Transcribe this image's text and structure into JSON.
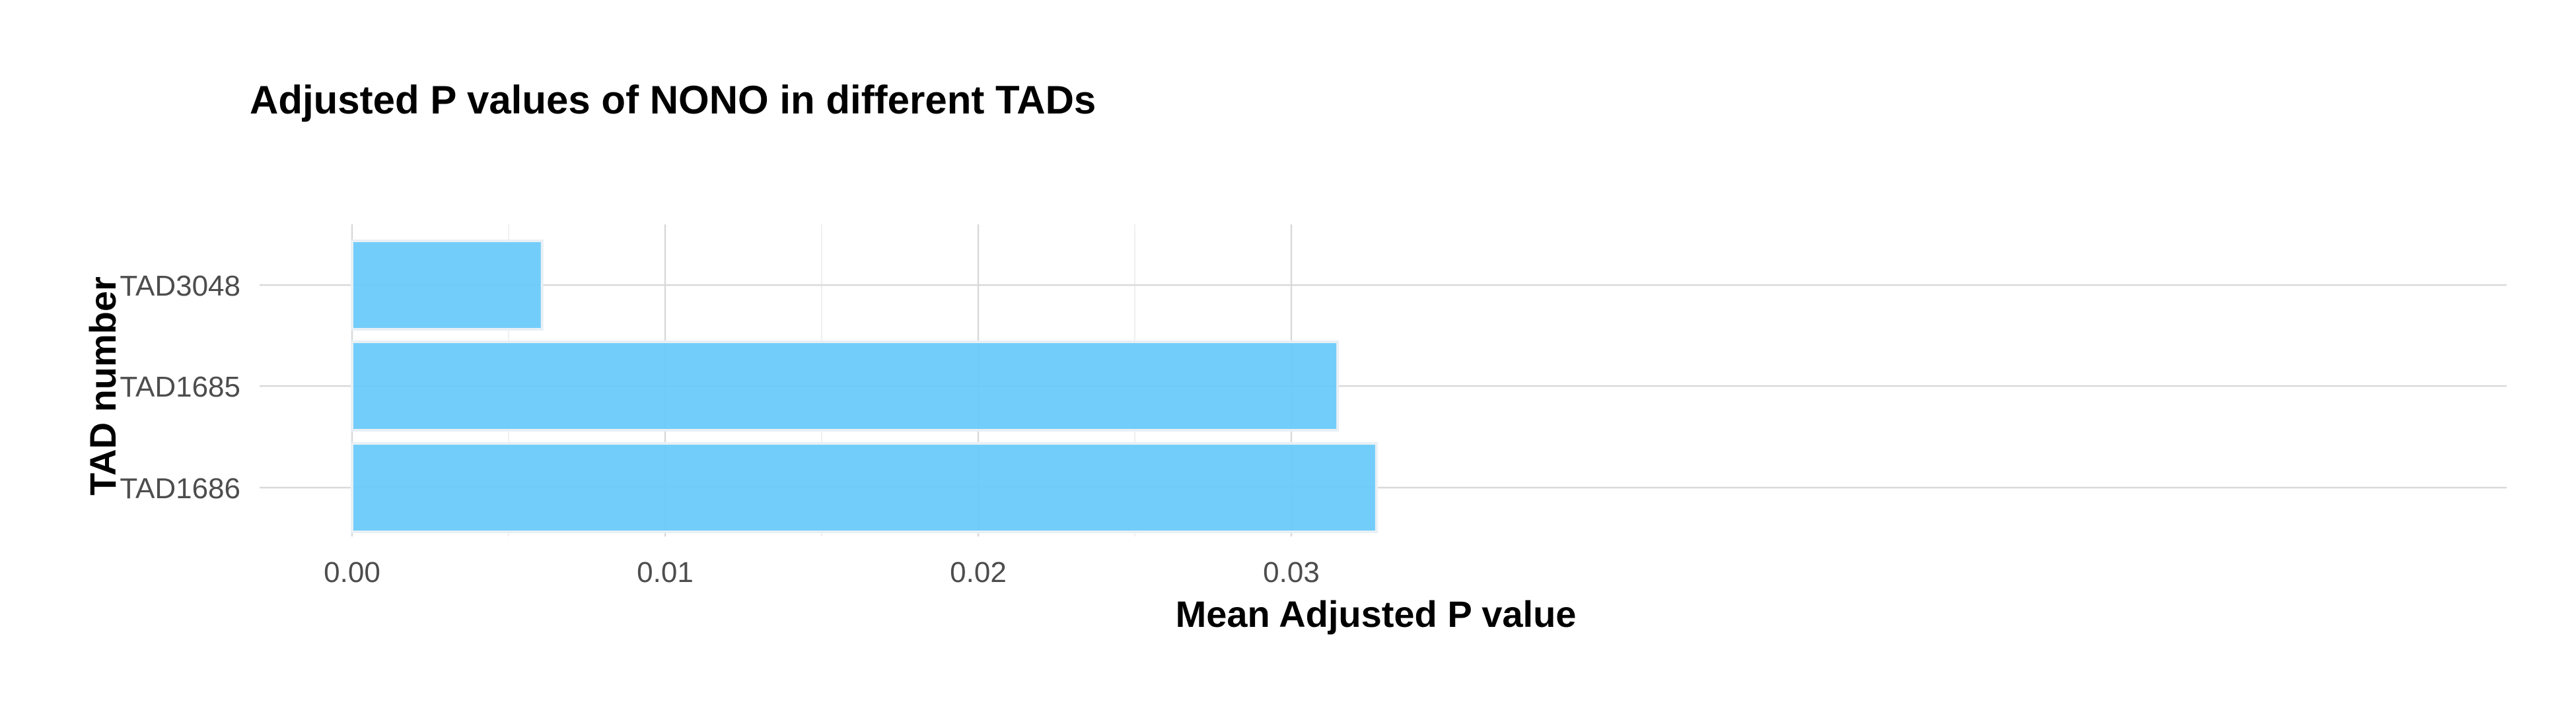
{
  "chart_data": {
    "type": "bar",
    "orientation": "horizontal",
    "title": "Adjusted P values of NONO in different TADs",
    "xlabel": "Mean Adjusted P value",
    "ylabel": "TAD number",
    "categories": [
      "TAD3048",
      "TAD1685",
      "TAD1686"
    ],
    "values": [
      0.00607,
      0.03148,
      0.03272
    ],
    "xlim": [
      0,
      0.0344
    ],
    "xticks": [
      0,
      0.01,
      0.02,
      0.03
    ],
    "xtick_labels": [
      "0.00",
      "0.01",
      "0.02",
      "0.03"
    ],
    "grid": true,
    "legend": "none",
    "bar_color": "#6ccafa"
  }
}
